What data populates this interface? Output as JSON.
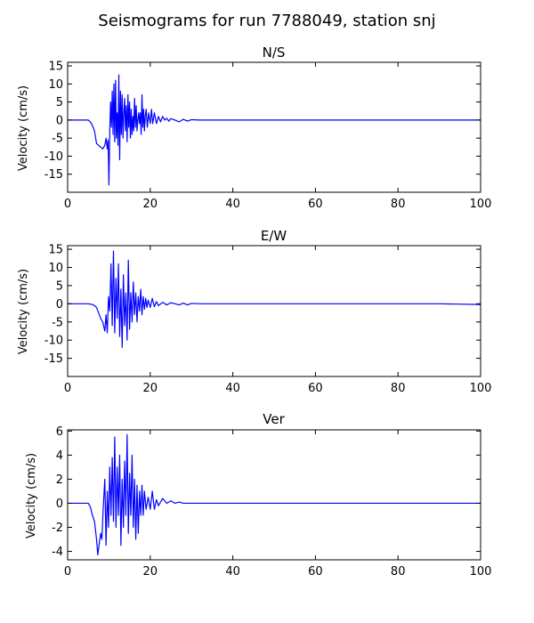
{
  "figure": {
    "title": "Seismograms for run 7788049, station snj",
    "line_color": "#0000ff"
  },
  "chart_data": [
    {
      "type": "line",
      "title": "N/S",
      "xlabel": "",
      "ylabel": "Velocity (cm/s)",
      "xlim": [
        0,
        100
      ],
      "ylim": [
        -20,
        16
      ],
      "xticks": [
        0,
        20,
        40,
        60,
        80,
        100
      ],
      "yticks": [
        -15,
        -10,
        -5,
        0,
        5,
        10,
        15
      ],
      "grid": false,
      "series": [
        {
          "x": [
            0,
            5,
            5.5,
            6,
            6.5,
            7,
            7.5,
            8,
            8.5,
            9,
            9.3,
            9.6,
            9.8,
            10,
            10.2,
            10.4,
            10.6,
            10.8,
            11,
            11.2,
            11.4,
            11.6,
            11.8,
            12,
            12.2,
            12.4,
            12.6,
            12.8,
            13,
            13.2,
            13.4,
            13.6,
            13.8,
            14,
            14.2,
            14.4,
            14.6,
            14.8,
            15,
            15.2,
            15.4,
            15.6,
            15.8,
            16,
            16.2,
            16.4,
            16.6,
            16.8,
            17,
            17.2,
            17.4,
            17.6,
            17.8,
            18,
            18.2,
            18.4,
            18.6,
            18.8,
            19,
            19.3,
            19.6,
            20,
            20.3,
            20.6,
            21,
            21.5,
            22,
            22.5,
            23,
            23.5,
            24,
            24.5,
            25,
            26,
            27,
            28,
            29,
            30,
            32,
            35,
            40,
            50,
            60,
            70,
            80,
            90,
            100
          ],
          "y": [
            0,
            0,
            -0.5,
            -1.5,
            -3,
            -6.5,
            -7,
            -7.5,
            -8,
            -7,
            -5,
            -8,
            -5.5,
            -18,
            -3,
            5,
            -2,
            8,
            -4,
            10,
            -6,
            11,
            -5,
            2,
            -7,
            12.5,
            -11,
            8,
            -4,
            7,
            -5,
            2,
            6,
            -3,
            4,
            -6,
            7,
            -2,
            5,
            -5,
            3,
            -4,
            1,
            -3,
            6,
            -2,
            4,
            -3,
            0,
            2,
            -1,
            2,
            -4,
            7,
            -2,
            3,
            -3,
            1,
            3,
            -2,
            2,
            -1,
            3,
            -1,
            2,
            -1,
            1,
            -0.5,
            1,
            0,
            0.5,
            -0.3,
            0.4,
            0,
            -0.5,
            0.2,
            -0.3,
            0.1,
            0,
            0,
            0,
            0,
            0,
            0,
            0,
            0,
            0
          ]
        }
      ]
    },
    {
      "type": "line",
      "title": "E/W",
      "xlabel": "",
      "ylabel": "Velocity (cm/s)",
      "xlim": [
        0,
        100
      ],
      "ylim": [
        -20,
        16
      ],
      "xticks": [
        0,
        20,
        40,
        60,
        80,
        100
      ],
      "yticks": [
        -15,
        -10,
        -5,
        0,
        5,
        10,
        15
      ],
      "grid": false,
      "series": [
        {
          "x": [
            0,
            5,
            6,
            6.5,
            7,
            7.5,
            8,
            8.5,
            9,
            9.3,
            9.6,
            9.9,
            10.2,
            10.5,
            10.8,
            11.1,
            11.4,
            11.7,
            12,
            12.3,
            12.6,
            12.9,
            13.2,
            13.5,
            13.8,
            14.1,
            14.4,
            14.7,
            15,
            15.3,
            15.6,
            15.9,
            16.2,
            16.5,
            16.8,
            17.1,
            17.4,
            17.7,
            18,
            18.3,
            18.6,
            18.9,
            19.2,
            19.5,
            20,
            20.5,
            21,
            21.5,
            22,
            23,
            24,
            25,
            26,
            27,
            28,
            29,
            30,
            32,
            35,
            40,
            50,
            60,
            70,
            80,
            90,
            100
          ],
          "y": [
            0,
            0,
            -0.2,
            -0.5,
            -1,
            -2.5,
            -4,
            -5,
            -7.5,
            -3,
            -8,
            2,
            -2,
            11,
            -6,
            14.5,
            -8,
            7,
            -4,
            11,
            -9,
            4,
            -12,
            8,
            -6,
            3,
            -10,
            12,
            -7,
            3,
            -5,
            6,
            -3,
            3,
            -5,
            2,
            -2,
            4,
            -3,
            2,
            -1.5,
            1.5,
            -1,
            1,
            -1,
            1.5,
            -0.8,
            0.6,
            -0.5,
            0.4,
            -0.3,
            0.3,
            0,
            -0.3,
            0.2,
            -0.3,
            0.1,
            0,
            0,
            0,
            0,
            0,
            0,
            0,
            0,
            -0.2
          ]
        }
      ]
    },
    {
      "type": "line",
      "title": "Ver",
      "xlabel": "",
      "ylabel": "Velocity (cm/s)",
      "xlim": [
        0,
        100
      ],
      "ylim": [
        -4.7,
        6.1
      ],
      "xticks": [
        0,
        20,
        40,
        60,
        80,
        100
      ],
      "yticks": [
        -4,
        -2,
        0,
        2,
        4,
        6
      ],
      "grid": false,
      "series": [
        {
          "x": [
            0,
            5,
            5.5,
            6,
            6.5,
            7,
            7.3,
            7.6,
            8,
            8.3,
            8.6,
            9,
            9.3,
            9.6,
            9.9,
            10.2,
            10.5,
            10.8,
            11.1,
            11.4,
            11.7,
            12,
            12.3,
            12.6,
            12.9,
            13.2,
            13.5,
            13.8,
            14.1,
            14.4,
            14.7,
            15,
            15.3,
            15.6,
            15.9,
            16.2,
            16.5,
            16.8,
            17.1,
            17.4,
            17.7,
            18,
            18.3,
            18.6,
            19,
            19.5,
            20,
            20.5,
            21,
            21.5,
            22,
            23,
            24,
            25,
            26,
            27,
            28,
            30,
            32,
            35,
            40,
            50,
            60,
            70,
            80,
            90,
            100
          ],
          "y": [
            0,
            0,
            -0.3,
            -1,
            -1.5,
            -3,
            -4.3,
            -3.5,
            -2.5,
            -3,
            -0.5,
            2,
            -3.5,
            1,
            -2,
            3,
            -1,
            3.8,
            -1.5,
            5.5,
            -2,
            3,
            -1,
            4,
            -3.5,
            2,
            -2,
            3.5,
            -1,
            5.7,
            -2.5,
            2.5,
            -1,
            4,
            -2,
            2,
            -3,
            1.5,
            -2.5,
            1,
            -1,
            1.5,
            -1,
            1,
            -0.5,
            0.5,
            -0.5,
            1,
            -0.5,
            0.3,
            -0.2,
            0.4,
            0,
            0.2,
            0,
            0.1,
            0,
            0,
            0,
            0,
            0,
            0,
            0,
            0,
            0,
            0,
            0
          ]
        }
      ]
    }
  ]
}
